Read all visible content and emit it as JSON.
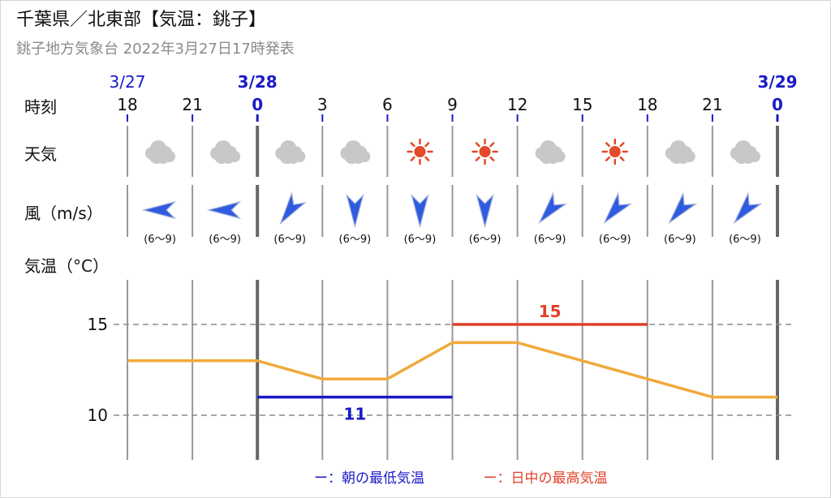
{
  "header": {
    "title": "千葉県／北東部【気温：銚子】",
    "subtitle": "銚子地方気象台 2022年3月27日17時発表"
  },
  "row_labels": {
    "time": "時刻",
    "weather": "天気",
    "wind": "風（m/s）",
    "temp": "気温（°C）"
  },
  "dates": [
    {
      "slot": 0,
      "label": "3/27",
      "bold": false
    },
    {
      "slot": 2,
      "label": "3/28",
      "bold": true
    },
    {
      "slot": 10,
      "label": "3/29",
      "bold": true
    }
  ],
  "hours": [
    "18",
    "21",
    "0",
    "3",
    "6",
    "9",
    "12",
    "15",
    "18",
    "21",
    "0"
  ],
  "day_boundaries": [
    2,
    10
  ],
  "weather": [
    "cloud-icon",
    "cloud-icon",
    "cloud-icon",
    "cloud-icon",
    "sun-icon",
    "sun-icon",
    "cloud-icon",
    "sun-icon",
    "cloud-icon",
    "cloud-icon"
  ],
  "wind": [
    {
      "dir_deg": 90,
      "speed": "(6〜9)"
    },
    {
      "dir_deg": 90,
      "speed": "(6〜9)"
    },
    {
      "dir_deg": 35,
      "speed": "(6〜9)"
    },
    {
      "dir_deg": 0,
      "speed": "(6〜9)"
    },
    {
      "dir_deg": 0,
      "speed": "(6〜9)"
    },
    {
      "dir_deg": 0,
      "speed": "(6〜9)"
    },
    {
      "dir_deg": 40,
      "speed": "(6〜9)"
    },
    {
      "dir_deg": 40,
      "speed": "(6〜9)"
    },
    {
      "dir_deg": 40,
      "speed": "(6〜9)"
    },
    {
      "dir_deg": 40,
      "speed": "(6〜9)"
    }
  ],
  "colors": {
    "line": "#F0AA3C",
    "min": "#1A1AC8",
    "max": "#E0402A",
    "blue_text": "#1A1AC8",
    "arrow": "#2E5BE0",
    "sun": "#E34A2A",
    "cloud": "#C8C8C8",
    "grid": "#8a8a8a"
  },
  "chart_data": {
    "type": "line",
    "x": [
      "3/27 18",
      "3/27 21",
      "3/28 0",
      "3/28 3",
      "3/28 6",
      "3/28 9",
      "3/28 12",
      "3/28 15",
      "3/28 18",
      "3/28 21",
      "3/29 0"
    ],
    "series": [
      {
        "values": [
          13,
          13,
          13,
          12,
          12,
          14,
          14,
          13,
          12,
          11,
          11
        ]
      }
    ],
    "yticks": [
      10,
      15
    ],
    "ylim": [
      8.5,
      16.8
    ],
    "min_temp": {
      "value": 11,
      "label": "11",
      "from_slot": 2,
      "to_slot": 5
    },
    "max_temp": {
      "value": 15,
      "label": "15",
      "from_slot": 5,
      "to_slot": 8
    },
    "legend": [
      {
        "text": "ー：朝の最低気温",
        "color": "#1A1AC8"
      },
      {
        "text": "ー：日中の最高気温",
        "color": "#E0402A"
      }
    ],
    "legend_placement": "bottom-center"
  }
}
